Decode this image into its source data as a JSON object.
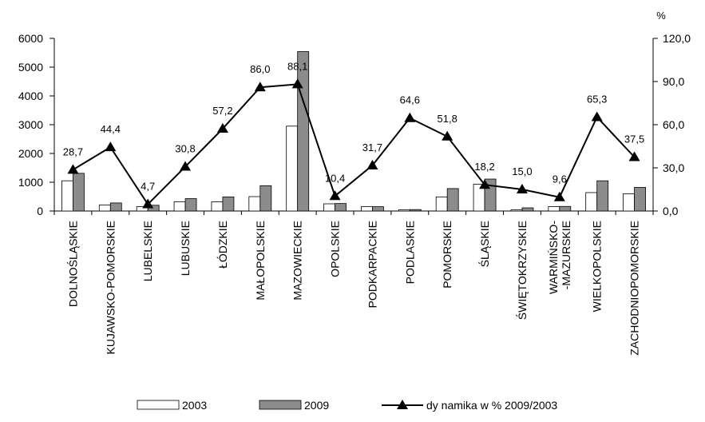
{
  "chart_data": {
    "type": "bar+line",
    "right_axis_unit": "%",
    "categories": [
      "DOLNOŚLĄSKIE",
      "KUJAWSKO-POMORSKIE",
      "LUBELSKIE",
      "LUBUSKIE",
      "ŁÓDZKIE",
      "MAŁOPOLSKIE",
      "MAZOWIECKIE",
      "OPOLSKIE",
      "PODKARPACKIE",
      "PODLASKIE",
      "POMORSKIE",
      "ŚLĄSKIE",
      "ŚWIĘTOKRZYSKIE",
      "WARMIŃSKO-\n-MAZURSKIE",
      "WIELKOPOLSKIE",
      "ZACHODNIOPOMORSKIE"
    ],
    "series": [
      {
        "name": "2003",
        "kind": "bar",
        "axis": "left",
        "color": "#ffffff",
        "values": [
          1050,
          210,
          150,
          320,
          320,
          500,
          2950,
          250,
          150,
          40,
          490,
          930,
          40,
          150,
          640,
          600
        ]
      },
      {
        "name": "2009",
        "kind": "bar",
        "axis": "left",
        "color": "#8c8c8c",
        "values": [
          1310,
          280,
          200,
          430,
          490,
          880,
          5540,
          260,
          150,
          50,
          780,
          1110,
          110,
          160,
          1050,
          820
        ]
      },
      {
        "name": "dy namika w % 2009/2003",
        "kind": "line",
        "axis": "right",
        "color": "#000000",
        "values": [
          28.7,
          44.4,
          4.7,
          30.8,
          57.2,
          86.0,
          88.1,
          10.4,
          31.7,
          64.6,
          51.8,
          18.2,
          15.0,
          9.6,
          65.3,
          37.5
        ],
        "labels": [
          "28,7",
          "44,4",
          "4,7",
          "30,8",
          "57,2",
          "86,0",
          "88,1",
          "10,4",
          "31,7",
          "64,6",
          "51,8",
          "18,2",
          "15,0",
          "9,6",
          "65,3",
          "37,5"
        ]
      }
    ],
    "y_left": {
      "range": [
        0,
        6000
      ],
      "ticks": [
        0,
        1000,
        2000,
        3000,
        4000,
        5000,
        6000
      ],
      "tick_labels": [
        "0",
        "1000",
        "2000",
        "3000",
        "4000",
        "5000",
        "6000"
      ]
    },
    "y_right": {
      "range": [
        0,
        120
      ],
      "ticks": [
        0,
        30,
        60,
        90,
        120
      ],
      "tick_labels": [
        "0,0",
        "30,0",
        "60,0",
        "90,0",
        "120,0"
      ]
    },
    "grid": false,
    "legend_position": "bottom",
    "legend": [
      "2003",
      "2009",
      "dy namika w % 2009/2003"
    ]
  }
}
